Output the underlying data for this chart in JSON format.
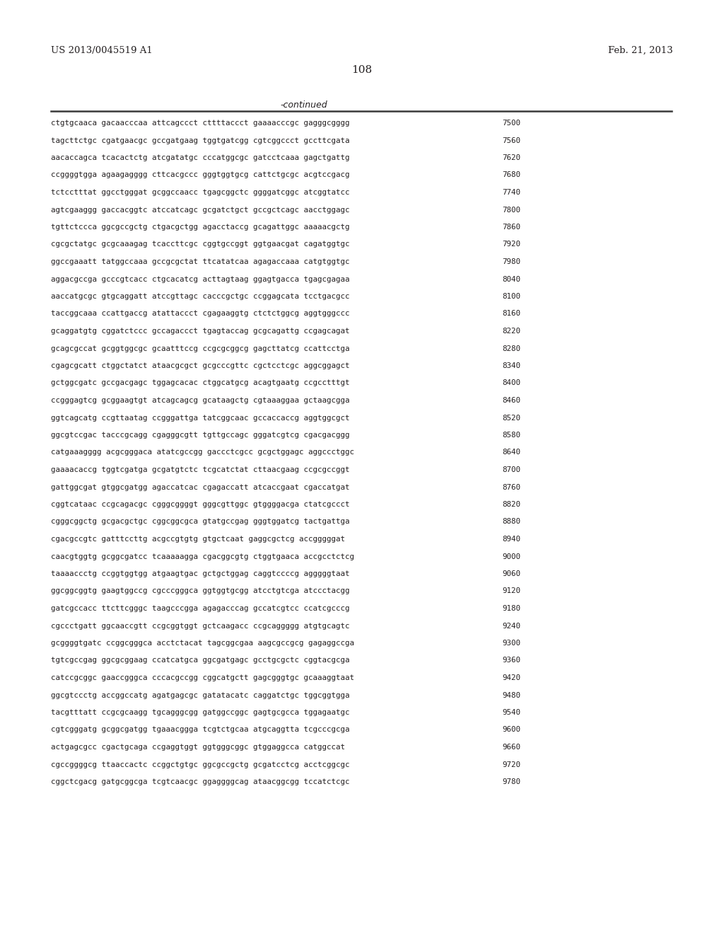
{
  "header_left": "US 2013/0045519 A1",
  "header_right": "Feb. 21, 2013",
  "page_number": "108",
  "continued_label": "-continued",
  "background_color": "#ffffff",
  "text_color": "#231f20",
  "sequence_lines": [
    [
      "ctgtgcaaca gacaacccaa attcagccct cttttaccct gaaaacccgc gagggcgggg",
      "7500"
    ],
    [
      "tagcttctgc cgatgaacgc gccgatgaag tggtgatcgg cgtcggccct gccttcgata",
      "7560"
    ],
    [
      "aacaccagca tcacactctg atcgatatgc cccatggcgc gatcctcaaa gagctgattg",
      "7620"
    ],
    [
      "ccggggtgga agaagagggg cttcacgccc gggtggtgcg cattctgcgc acgtccgacg",
      "7680"
    ],
    [
      "tctcctttat ggcctgggat gcggccaacc tgagcggctc ggggatcggc atcggtatcc",
      "7740"
    ],
    [
      "agtcgaaggg gaccacggtc atccatcagc gcgatctgct gccgctcagc aacctggagc",
      "7800"
    ],
    [
      "tgttctccca ggcgccgctg ctgacgctgg agacctaccg gcagattggc aaaaacgctg",
      "7860"
    ],
    [
      "cgcgctatgc gcgcaaagag tcaccttcgc cggtgccggt ggtgaacgat cagatggtgc",
      "7920"
    ],
    [
      "ggccgaaatt tatggccaaa gccgcgctat ttcatatcaa agagaccaaa catgtggtgc",
      "7980"
    ],
    [
      "aggacgccga gcccgtcacc ctgcacatcg acttagtaag ggagtgacca tgagcgagaa",
      "8040"
    ],
    [
      "aaccatgcgc gtgcaggatt atccgttagc cacccgctgc ccggagcata tcctgacgcc",
      "8100"
    ],
    [
      "taccggcaaa ccattgaccg atattaccct cgagaaggtg ctctctggcg aggtgggccc",
      "8160"
    ],
    [
      "gcaggatgtg cggatctccc gccagaccct tgagtaccag gcgcagattg ccgagcagat",
      "8220"
    ],
    [
      "gcagcgccat gcggtggcgc gcaatttccg ccgcgcggcg gagcttatcg ccattcctga",
      "8280"
    ],
    [
      "cgagcgcatt ctggctatct ataacgcgct gcgcccgttc cgctcctcgc aggcggagct",
      "8340"
    ],
    [
      "gctggcgatc gccgacgagc tggagcacac ctggcatgcg acagtgaatg ccgcctttgt",
      "8400"
    ],
    [
      "ccgggagtcg gcggaagtgt atcagcagcg gcataagctg cgtaaaggaa gctaagcgga",
      "8460"
    ],
    [
      "ggtcagcatg ccgttaatag ccgggattga tatcggcaac gccaccaccg aggtggcgct",
      "8520"
    ],
    [
      "ggcgtccgac tacccgcagg cgagggcgtt tgttgccagc gggatcgtcg cgacgacggg",
      "8580"
    ],
    [
      "catgaaagggg acgcgggaca atatcgccgg gaccctcgcc gcgctggagc aggccctggc",
      "8640"
    ],
    [
      "gaaaacaccg tggtcgatga gcgatgtctc tcgcatctat cttaacgaag ccgcgccggt",
      "8700"
    ],
    [
      "gattggcgat gtggcgatgg agaccatcac cgagaccatt atcaccgaat cgaccatgat",
      "8760"
    ],
    [
      "cggtcataac ccgcagacgc cgggcggggt gggcgttggc gtggggacga ctatcgccct",
      "8820"
    ],
    [
      "cgggcggctg gcgacgctgc cggcggcgca gtatgccgag gggtggatcg tactgattga",
      "8880"
    ],
    [
      "cgacgccgtc gatttccttg acgccgtgtg gtgctcaat gaggcgctcg accgggggat",
      "8940"
    ],
    [
      "caacgtggtg gcggcgatcc tcaaaaagga cgacggcgtg ctggtgaaca accgcctctcg",
      "9000"
    ],
    [
      "taaaaccctg ccggtggtgg atgaagtgac gctgctggag caggtccccg agggggtaat",
      "9060"
    ],
    [
      "ggcggcggtg gaagtggccg cgcccgggca ggtggtgcgg atcctgtcga atccctacgg",
      "9120"
    ],
    [
      "gatcgccacc ttcttcgggc taagcccgga agagacccag gccatcgtcc ccatcgcccg",
      "9180"
    ],
    [
      "cgccctgatt ggcaaccgtt ccgcggtggt gctcaagacc ccgcaggggg atgtgcagtc",
      "9240"
    ],
    [
      "gcggggtgatc ccggcgggca acctctacat tagcggcgaa aagcgccgcg gagaggccga",
      "9300"
    ],
    [
      "tgtcgccgag ggcgcggaag ccatcatgca ggcgatgagc gcctgcgctc cggtacgcga",
      "9360"
    ],
    [
      "catccgcggc gaaccgggca cccacgccgg cggcatgctt gagcgggtgc gcaaaggtaat",
      "9420"
    ],
    [
      "ggcgtccctg accggccatg agatgagcgc gatatacatc caggatctgc tggcggtgga",
      "9480"
    ],
    [
      "tacgtttatt ccgcgcaagg tgcagggcgg gatggccggc gagtgcgcca tggagaatgc",
      "9540"
    ],
    [
      "cgtcgggatg gcggcgatgg tgaaacggga tcgtctgcaa atgcaggtta tcgcccgcga",
      "9600"
    ],
    [
      "actgagcgcc cgactgcaga ccgaggtggt ggtgggcggc gtggaggcca catggccat",
      "9660"
    ],
    [
      "cgccggggcg ttaaccactc ccggctgtgc ggcgccgctg gcgatcctcg acctcggcgc",
      "9720"
    ],
    [
      "cggctcgacg gatgcggcga tcgtcaacgc ggaggggcag ataacggcgg tccatctcgc",
      "9780"
    ]
  ]
}
